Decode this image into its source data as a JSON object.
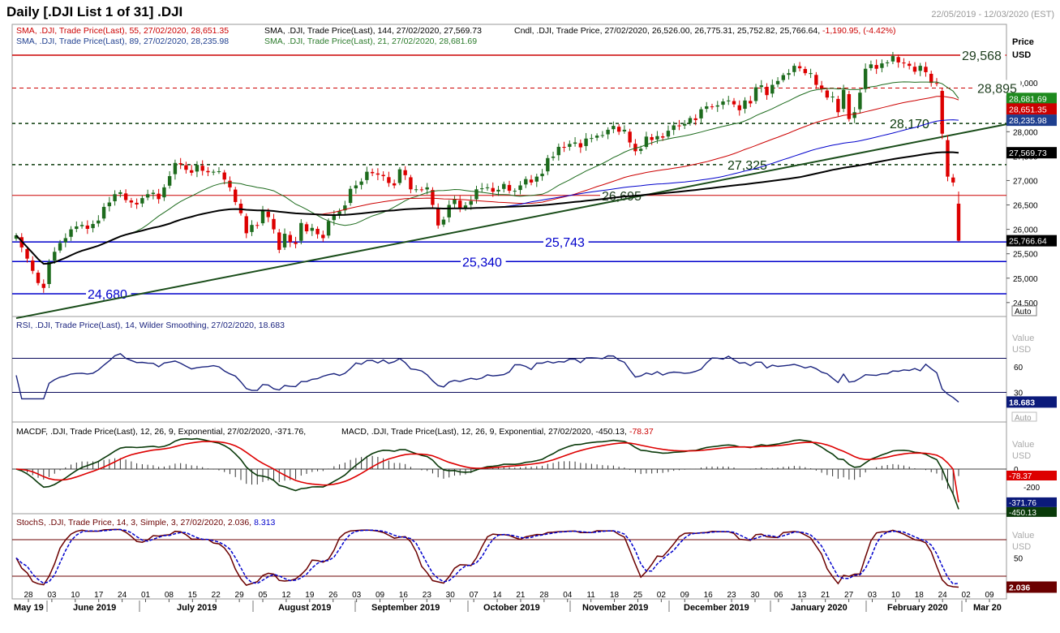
{
  "header": {
    "title": "Daily [.DJI List 1 of 31] .DJI",
    "date_range": "22/05/2019 - 12/03/2020 (EST)"
  },
  "price_panel": {
    "legend": [
      {
        "text": "SMA, .DJI, Trade Price(Last),   55, 27/02/2020, 28,651.35",
        "color": "#cc0000"
      },
      {
        "text": "SMA, .DJI, Trade Price(Last),   144, 27/02/2020, 27,569.73",
        "color": "#000000"
      },
      {
        "text": "Cndl, .DJI, Trade Price, 27/02/2020, 26,526.00, 26,775.31, 25,752.82, 25,766.64, -1,190.95, (-4.42%)",
        "color": "#000000",
        "highlight": "-1,190.95, (-4.42%)",
        "highlight_color": "#cc0000"
      },
      {
        "text": "SMA, .DJI, Trade Price(Last),   89, 27/02/2020, 28,235.98",
        "color": "#1f3f8f"
      },
      {
        "text": "SMA, .DJI, Trade Price(Last),   21, 27/02/2020, 28,681.69",
        "color": "#2a7a2a"
      }
    ],
    "axis_title": "Price",
    "axis_unit": "USD",
    "ticks": [
      "29,000",
      "28,500",
      "28,000",
      "27,500",
      "27,000",
      "26,500",
      "26,000",
      "25,500",
      "25,000",
      "24,500"
    ],
    "tags": [
      {
        "text": "28,681.69",
        "bg": "#1e8a1e"
      },
      {
        "text": "28,651.35",
        "bg": "#cc0000"
      },
      {
        "text": "28,235.98",
        "bg": "#1f3f8f"
      },
      {
        "text": "27,569.73",
        "bg": "#000000"
      },
      {
        "text": "25,766.64",
        "bg": "#000000"
      }
    ],
    "levels": [
      {
        "text": "29,568"
      },
      {
        "text": "28,895"
      },
      {
        "text": "28,170"
      },
      {
        "text": "27,325"
      },
      {
        "text": "26,695"
      },
      {
        "text": "25,743"
      },
      {
        "text": "25,340"
      },
      {
        "text": "24,680"
      }
    ],
    "auto_label": "Auto"
  },
  "rsi_panel": {
    "legend": "RSI, .DJI, Trade Price(Last),   14, Wilder Smoothing, 27/02/2020, 18.683",
    "axis_value": "Value",
    "axis_unit": "USD",
    "ticks": [
      "60",
      "30"
    ],
    "tag": "18.683",
    "auto_label": "Auto"
  },
  "macd_panel": {
    "legend_a": "MACDF, .DJI, Trade Price(Last),   12, 26, 9, Exponential, 27/02/2020, -371.76,",
    "legend_b": "MACD, .DJI, Trade Price(Last),   12, 26, 9, Exponential, 27/02/2020, -450.13,",
    "legend_b_red": "-78.37",
    "axis_value": "Value",
    "axis_unit": "USD",
    "ticks": [
      "0",
      "-200"
    ],
    "tags": [
      "-78.37",
      "-371.76",
      "-450.13"
    ]
  },
  "stoch_panel": {
    "legend": "StochS, .DJI, Trade Price,   14, 3, Simple, 3, 27/02/2020, 2.036,",
    "legend_blue": "8.313",
    "axis_value": "Value",
    "axis_unit": "USD",
    "ticks": [
      "50"
    ],
    "tag": "2.036"
  },
  "x_axis": {
    "days": [
      "28",
      "03",
      "10",
      "17",
      "24",
      "01",
      "08",
      "15",
      "22",
      "29",
      "05",
      "12",
      "19",
      "26",
      "03",
      "09",
      "16",
      "23",
      "30",
      "07",
      "14",
      "21",
      "28",
      "04",
      "11",
      "18",
      "25",
      "02",
      "09",
      "16",
      "23",
      "30",
      "06",
      "13",
      "21",
      "27",
      "03",
      "10",
      "18",
      "24",
      "02",
      "09"
    ],
    "months": [
      "May 19",
      "June 2019",
      "July 2019",
      "August 2019",
      "September 2019",
      "October 2019",
      "November 2019",
      "December 2019",
      "January 2020",
      "February 2020",
      "Mar 20"
    ]
  },
  "chart_data": {
    "type": "candlestick",
    "symbol": ".DJI",
    "last_candle": {
      "date": "27/02/2020",
      "open": 26526.0,
      "high": 26775.31,
      "low": 25752.82,
      "close": 25766.64,
      "change": -1190.95,
      "change_pct": -4.42
    },
    "closes": [
      25877,
      25630,
      25400,
      25150,
      24900,
      24800,
      25330,
      25540,
      25720,
      25820,
      26000,
      26060,
      26090,
      26010,
      26110,
      26180,
      26460,
      26550,
      26720,
      26760,
      26600,
      26550,
      26510,
      26640,
      26720,
      26750,
      26620,
      26860,
      27090,
      27360,
      27330,
      27220,
      27160,
      27320,
      27200,
      27170,
      27180,
      27190,
      27020,
      26860,
      26560,
      26330,
      25920,
      26090,
      26080,
      26380,
      26250,
      26000,
      25580,
      25910,
      25740,
      25700,
      26130,
      25960,
      26030,
      25900,
      25820,
      26170,
      26300,
      26370,
      26490,
      26830,
      26900,
      26980,
      27180,
      27150,
      27120,
      27090,
      26950,
      26900,
      27230,
      27110,
      26820,
      26820,
      26810,
      26860,
      26500,
      26080,
      26200,
      26500,
      26620,
      26420,
      26490,
      26580,
      26820,
      26840,
      26860,
      26770,
      26810,
      26930,
      26790,
      26790,
      26900,
      27030,
      26960,
      27080,
      27140,
      27460,
      27490,
      27690,
      27680,
      27750,
      27780,
      27680,
      27860,
      27870,
      27920,
      27930,
      28040,
      28120,
      28000,
      28040,
      27780,
      27600,
      27650,
      27900,
      27830,
      27910,
      27880,
      28020,
      28130,
      28120,
      28160,
      28280,
      28240,
      28460,
      28520,
      28510,
      28540,
      28620,
      28640,
      28560,
      28440,
      28640,
      28580,
      28910,
      28950,
      28750,
      28960,
      29040,
      29160,
      29200,
      29350,
      29300,
      29200,
      29200,
      28960,
      28870,
      28700,
      28720,
      28400,
      28860,
      28260,
      28400,
      28800,
      29290,
      29380,
      29290,
      29400,
      29420,
      29550,
      29420,
      29400,
      29350,
      29230,
      29350,
      29220,
      29000,
      28990,
      27960,
      27080,
      26960,
      25766.64
    ],
    "sma21_last": 28681.69,
    "sma55_last": 28651.35,
    "sma89_last": 28235.98,
    "sma144_last": 27569.73,
    "horizontal_levels": [
      29568,
      28895,
      28170,
      27325,
      26695,
      25743,
      25340,
      24680
    ],
    "trendline": {
      "start": [
        0,
        24180
      ],
      "end": [
        182,
        28180
      ]
    },
    "ylim": [
      24300,
      29800
    ],
    "rsi": {
      "last": 18.683,
      "bands": [
        70,
        30
      ],
      "ylim": [
        0,
        100
      ]
    },
    "macd": {
      "macd_last": -450.13,
      "signal_last": -371.76,
      "histogram_last": -78.37
    },
    "stochastic": {
      "k_last": 2.036,
      "d_last": 8.313,
      "bands": [
        80,
        20
      ]
    }
  },
  "colors": {
    "bull": "#1d6b1d",
    "bear": "#dd0000",
    "resistance": "#cc0000",
    "support": "#0000cc",
    "dashed": "#0a3a0a",
    "rsi": "#1a237e",
    "macd": "#0a3a0a",
    "signal": "#dd0000",
    "stoch_k": "#6b0000",
    "stoch_d": "#0000cc"
  }
}
